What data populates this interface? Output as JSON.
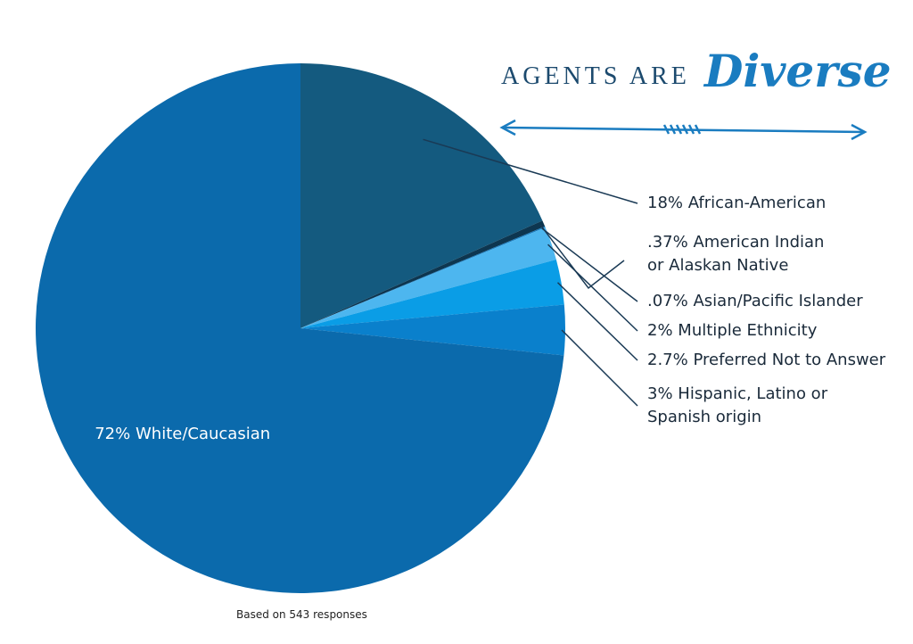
{
  "chart_data": {
    "type": "pie",
    "title": "AGENTS ARE",
    "title_emphasis": "Diverse",
    "categories": [
      "African-American",
      "American Indian or Alaskan Native",
      "Asian/Pacific Islander",
      "Multiple Ethnicity",
      "Preferred Not to Answer",
      "Hispanic, Latino or Spanish origin",
      "White/Caucasian"
    ],
    "values": [
      18,
      0.37,
      0.07,
      2,
      2.7,
      3,
      72
    ],
    "value_labels": [
      "18%",
      ".37%",
      ".07%",
      "2%",
      "2.7%",
      "3%",
      "72%"
    ],
    "colors": [
      "#145a7f",
      "#0d3650",
      "#1579bd",
      "#4db6ef",
      "#0a9de6",
      "#0a80cc",
      "#0b6aac"
    ],
    "note": "Based on 543 responses"
  }
}
